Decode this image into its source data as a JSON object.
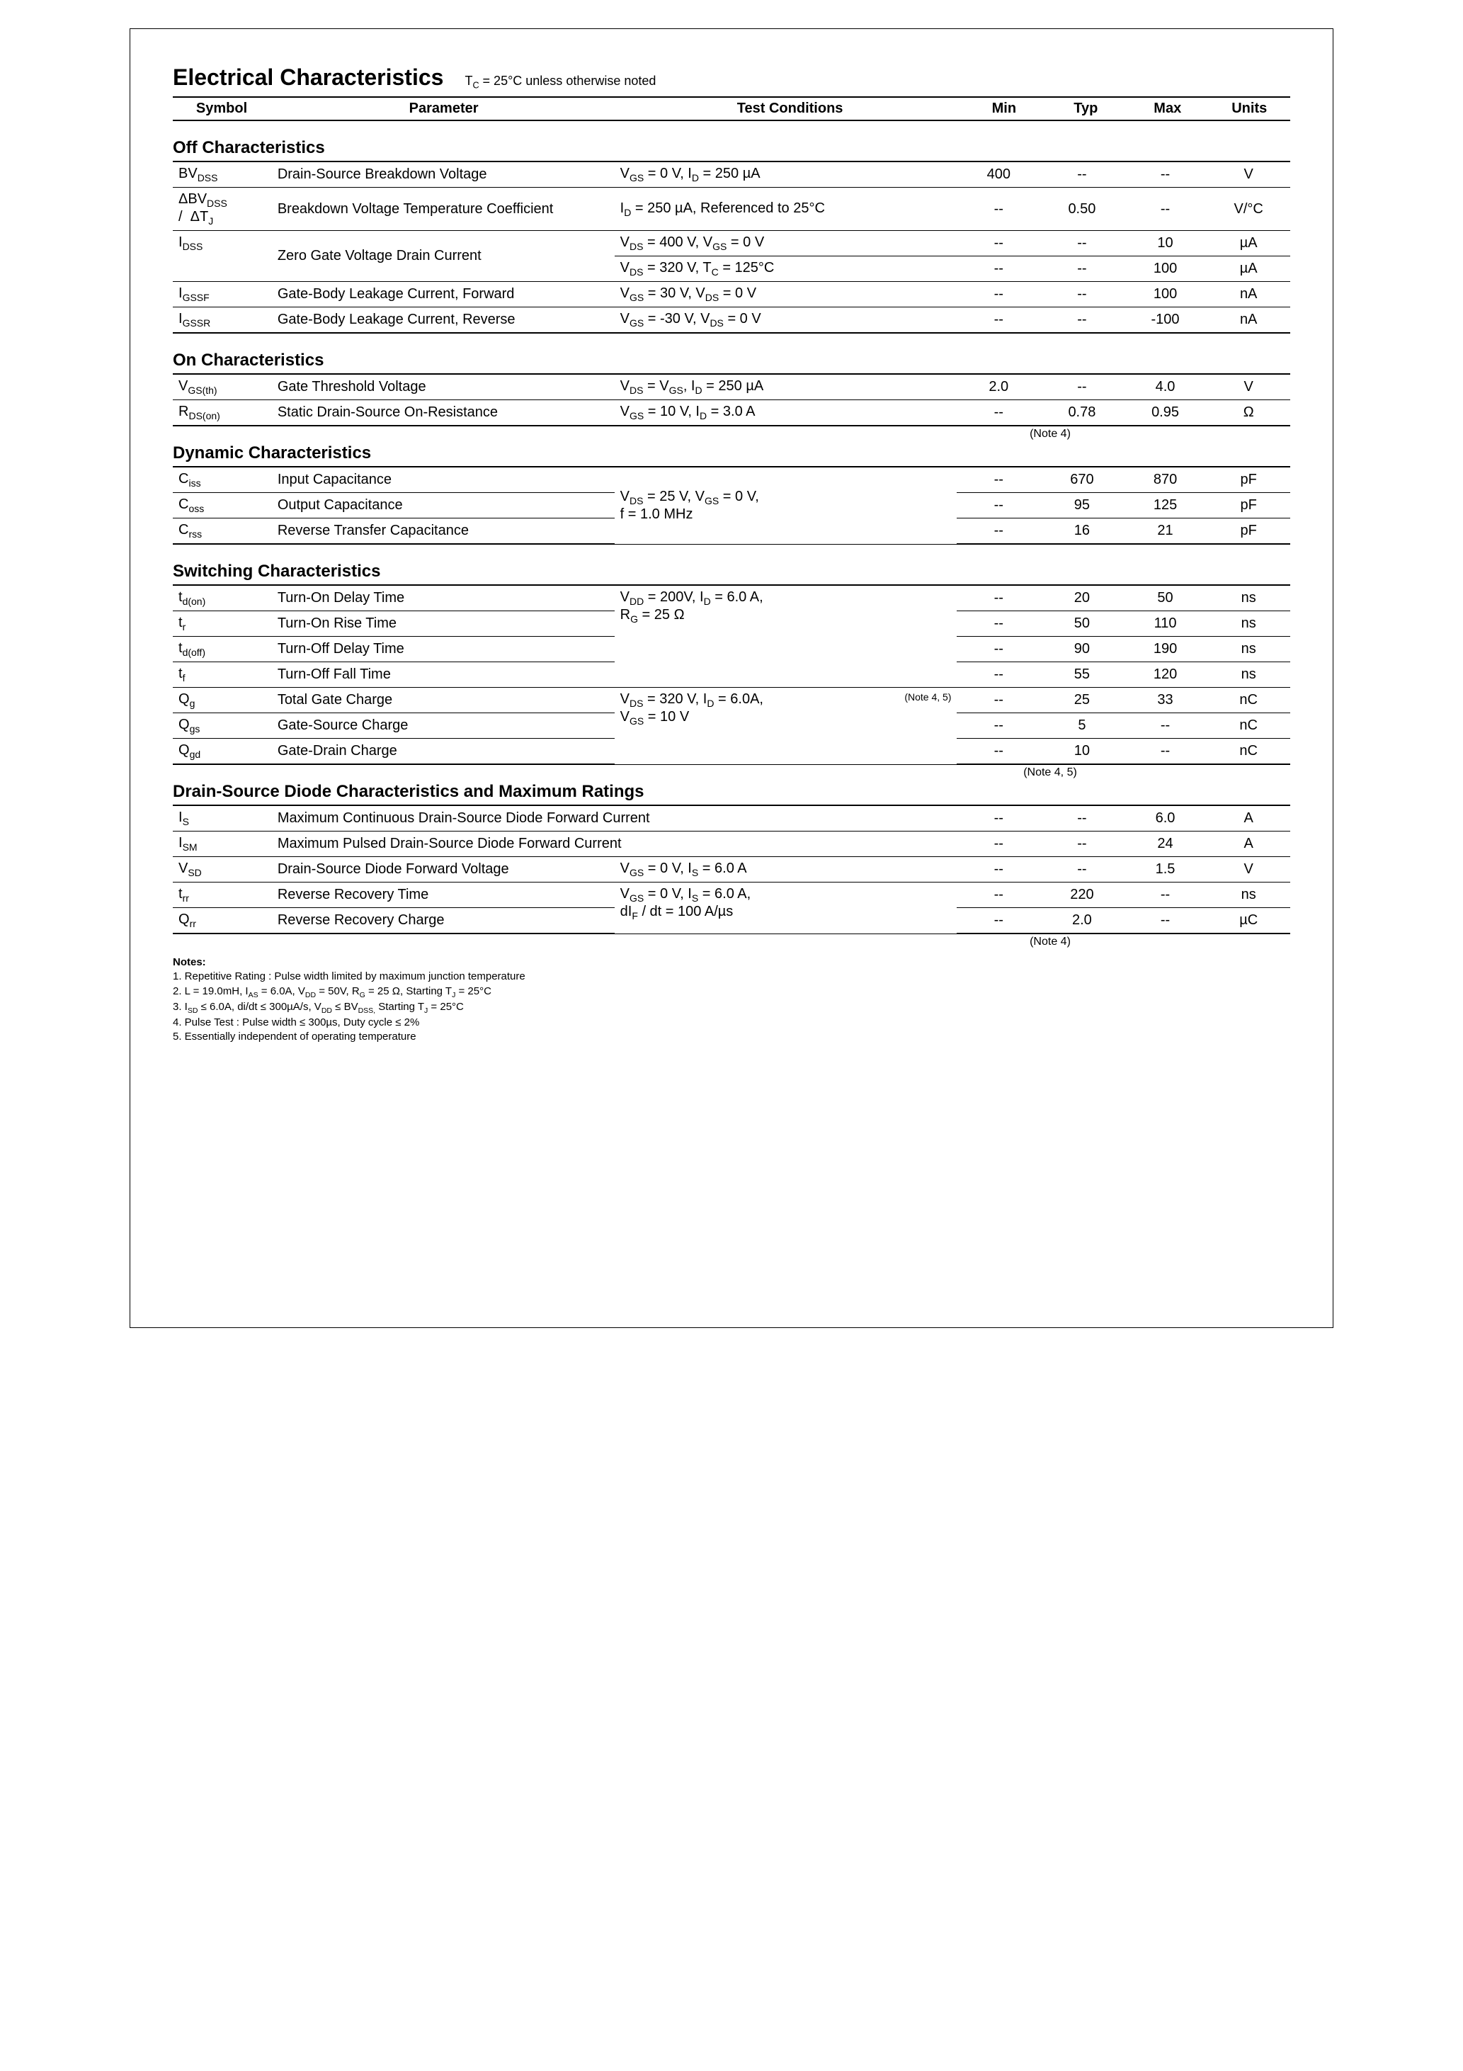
{
  "page": {
    "main_title": "Electrical Characteristics",
    "title_sub_pre": "T",
    "title_sub_sub": "C",
    "title_sub_post": " = 25°C unless otherwise noted",
    "headers": {
      "symbol": "Symbol",
      "parameter": "Parameter",
      "conditions": "Test Conditions",
      "min": "Min",
      "typ": "Typ",
      "max": "Max",
      "units": "Units"
    }
  },
  "off": {
    "title": "Off Characteristics",
    "rows": {
      "r1": {
        "sym_pre": "BV",
        "sym_sub": "DSS",
        "param": "Drain-Source Breakdown Voltage",
        "cond_html": "V<sub>GS</sub> = 0 V, I<sub>D</sub> = 250 µA",
        "min": "400",
        "typ": "--",
        "max": "--",
        "unit": "V"
      },
      "r2": {
        "sym_html": "ΔBV<sub>DSS</sub><br>/&nbsp;&nbsp;ΔT<sub>J</sub>",
        "param": "Breakdown Voltage Temperature Coefficient",
        "cond_html": "I<sub>D</sub> = 250 µA, Referenced to 25°C",
        "min": "--",
        "typ": "0.50",
        "max": "--",
        "unit": "V/°C"
      },
      "r3a": {
        "sym_pre": "I",
        "sym_sub": "DSS",
        "param": "Zero Gate Voltage Drain Current",
        "cond_html": "V<sub>DS</sub> = 400 V, V<sub>GS</sub> = 0 V",
        "min": "--",
        "typ": "--",
        "max": "10",
        "unit": "µA"
      },
      "r3b": {
        "cond_html": "V<sub>DS</sub> = 320 V, T<sub>C</sub> = 125°C",
        "min": "--",
        "typ": "--",
        "max": "100",
        "unit": "µA"
      },
      "r4": {
        "sym_pre": "I",
        "sym_sub": "GSSF",
        "param": "Gate-Body Leakage Current, Forward",
        "cond_html": "V<sub>GS</sub> =  30 V, V<sub>DS</sub> = 0 V",
        "min": "--",
        "typ": "--",
        "max": "100",
        "unit": "nA"
      },
      "r5": {
        "sym_pre": "I",
        "sym_sub": "GSSR",
        "param": "Gate-Body Leakage Current, Reverse",
        "cond_html": "V<sub>GS</sub> = -30 V, V<sub>DS</sub> = 0 V",
        "min": "--",
        "typ": "--",
        "max": "-100",
        "unit": "nA"
      }
    }
  },
  "on": {
    "title": "On Characteristics",
    "rows": {
      "r1": {
        "sym_pre": "V",
        "sym_sub": "GS(th)",
        "param": "Gate Threshold Voltage",
        "cond_html": "V<sub>DS</sub> = V<sub>GS</sub>, I<sub>D</sub> = 250 µA",
        "min": "2.0",
        "typ": "--",
        "max": "4.0",
        "unit": "V"
      },
      "r2": {
        "sym_pre": "R",
        "sym_sub": "DS(on)",
        "param": "Static Drain-Source On-Resistance",
        "cond_html": "V<sub>GS</sub> = 10 V, I<sub>D</sub> = 3.0 A",
        "min": "--",
        "typ": "0.78",
        "max": "0.95",
        "unit": "Ω"
      }
    },
    "note": "(Note 4)"
  },
  "dyn": {
    "title": "Dynamic Characteristics",
    "cond_html": "V<sub>DS</sub> = 25 V, V<sub>GS</sub> = 0 V,<br>f = 1.0 MHz",
    "rows": {
      "r1": {
        "sym_pre": "C",
        "sym_sub": "iss",
        "param": "Input Capacitance",
        "min": "--",
        "typ": "670",
        "max": "870",
        "unit": "pF"
      },
      "r2": {
        "sym_pre": "C",
        "sym_sub": "oss",
        "param": "Output Capacitance",
        "min": "--",
        "typ": "95",
        "max": "125",
        "unit": "pF"
      },
      "r3": {
        "sym_pre": "C",
        "sym_sub": "rss",
        "param": "Reverse Transfer Capacitance",
        "min": "--",
        "typ": "16",
        "max": "21",
        "unit": "pF"
      }
    }
  },
  "sw": {
    "title": "Switching Characteristics",
    "cond1_html": "V<sub>DD</sub> = 200V, I<sub>D</sub> = 6.0 A,<br>R<sub>G</sub> = 25 Ω",
    "cond2_html": "V<sub>DS</sub> = 320 V, I<sub>D</sub> = 6.0A,<span class='cond-note'>(Note 4, 5)</span><br>V<sub>GS</sub> = 10 V",
    "rows": {
      "r1": {
        "sym_pre": "t",
        "sym_sub": "d(on)",
        "param": "Turn-On Delay Time",
        "min": "--",
        "typ": "20",
        "max": "50",
        "unit": "ns"
      },
      "r2": {
        "sym_pre": "t",
        "sym_sub": "r",
        "param": "Turn-On Rise Time",
        "min": "--",
        "typ": "50",
        "max": "110",
        "unit": "ns"
      },
      "r3": {
        "sym_pre": "t",
        "sym_sub": "d(off)",
        "param": "Turn-Off Delay Time",
        "min": "--",
        "typ": "90",
        "max": "190",
        "unit": "ns"
      },
      "r4": {
        "sym_pre": "t",
        "sym_sub": "f",
        "param": "Turn-Off Fall Time",
        "min": "--",
        "typ": "55",
        "max": "120",
        "unit": "ns"
      },
      "r5": {
        "sym_pre": "Q",
        "sym_sub": "g",
        "param": "Total Gate Charge",
        "min": "--",
        "typ": "25",
        "max": "33",
        "unit": "nC"
      },
      "r6": {
        "sym_pre": "Q",
        "sym_sub": "gs",
        "param": "Gate-Source Charge",
        "min": "--",
        "typ": "5",
        "max": "--",
        "unit": "nC"
      },
      "r7": {
        "sym_pre": "Q",
        "sym_sub": "gd",
        "param": "Gate-Drain Charge",
        "min": "--",
        "typ": "10",
        "max": "--",
        "unit": "nC"
      }
    },
    "note": "(Note 4, 5)"
  },
  "diode": {
    "title": "Drain-Source Diode Characteristics and Maximum Ratings",
    "cond2_html": "V<sub>GS</sub> = 0 V, I<sub>S</sub> = 6.0 A,<br>dI<sub>F</sub> / dt = 100 A/µs",
    "rows": {
      "r1": {
        "sym_pre": "I",
        "sym_sub": "S",
        "param": "Maximum Continuous Drain-Source Diode Forward Current",
        "min": "--",
        "typ": "--",
        "max": "6.0",
        "unit": "A"
      },
      "r2": {
        "sym_pre": "I",
        "sym_sub": "SM",
        "param": "Maximum Pulsed Drain-Source Diode Forward Current",
        "min": "--",
        "typ": "--",
        "max": "24",
        "unit": "A"
      },
      "r3": {
        "sym_pre": "V",
        "sym_sub": "SD",
        "param": "Drain-Source Diode Forward Voltage",
        "cond_html": "V<sub>GS</sub> = 0 V, I<sub>S</sub> = 6.0 A",
        "min": "--",
        "typ": "--",
        "max": "1.5",
        "unit": "V"
      },
      "r4": {
        "sym_pre": "t",
        "sym_sub": "rr",
        "param": "Reverse Recovery Time",
        "min": "--",
        "typ": "220",
        "max": "--",
        "unit": "ns"
      },
      "r5": {
        "sym_pre": "Q",
        "sym_sub": "rr",
        "param": "Reverse Recovery Charge",
        "min": "--",
        "typ": "2.0",
        "max": "--",
        "unit": "µC"
      }
    },
    "note": "(Note 4)"
  },
  "notes": {
    "title": "Notes:",
    "n1": "1. Repetitive Rating : Pulse width limited by maximum junction temperature",
    "n2_html": "2. L = 19.0mH, I<sub>AS</sub> = 6.0A, V<sub>DD</sub> = 50V, R<sub>G</sub> = 25 Ω, Starting  T<sub>J</sub> = 25°C",
    "n3_html": "3. I<sub>SD</sub> ≤ 6.0A, di/dt ≤ 300µA/s, V<sub>DD</sub> ≤ BV<sub>DSS,</sub> Starting  T<sub>J</sub> = 25°C",
    "n4": "4. Pulse Test : Pulse width ≤ 300µs, Duty cycle ≤ 2%",
    "n5": "5. Essentially independent of operating temperature"
  }
}
